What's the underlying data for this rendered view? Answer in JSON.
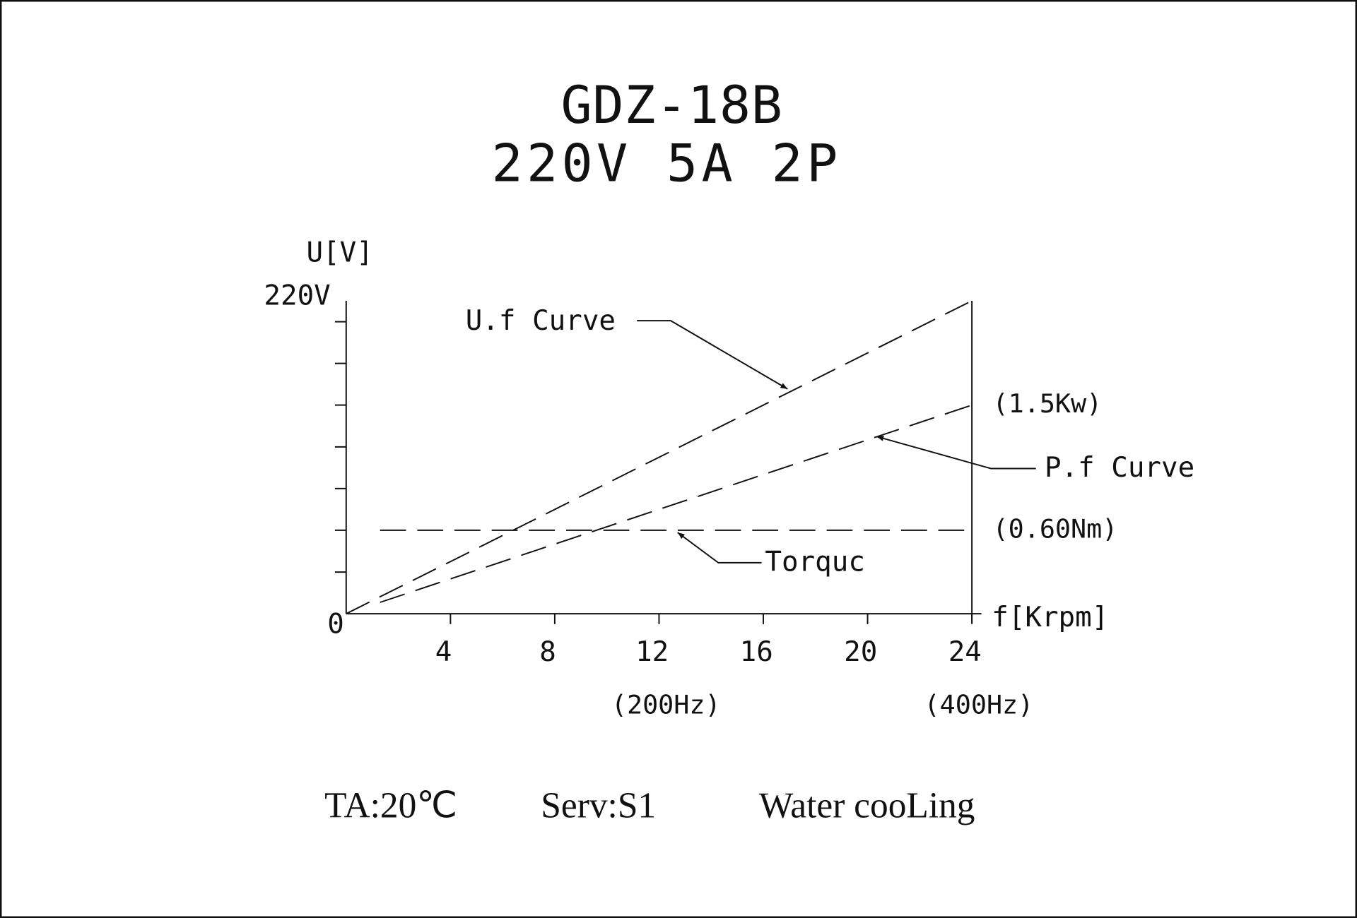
{
  "chart_data": {
    "type": "line",
    "title": "GDZ-18B",
    "subtitle": "220V 5A 2P",
    "y_axis_label": "U[V]",
    "x_axis_label": "f[Krpm]",
    "xlim": [
      0,
      24
    ],
    "ylim": [
      0,
      220
    ],
    "xticks": [
      0,
      4,
      8,
      12,
      16,
      20,
      24
    ],
    "yticks": [
      {
        "value": 220,
        "label": "220V"
      }
    ],
    "y_minor_ticks": [
      29.3,
      58.7,
      88,
      117.3,
      146.7,
      176,
      205.3
    ],
    "x_sublabels": [
      {
        "value": 12,
        "label": "(200Hz)"
      },
      {
        "value": 24,
        "label": "(400Hz)"
      }
    ],
    "color": "#111111",
    "series": [
      {
        "name": "U.f Curve",
        "x": [
          0,
          24
        ],
        "values": [
          0,
          220
        ]
      },
      {
        "name": "P.f Curve",
        "x": [
          1.3,
          24
        ],
        "values": [
          8,
          146.7
        ],
        "end_label": "(1.5Kw)"
      },
      {
        "name": "Torquc",
        "x": [
          1.3,
          24
        ],
        "values": [
          58.7,
          58.7
        ],
        "end_label": "(0.60Nm)"
      }
    ],
    "footer": [
      "TA:20℃",
      "Serv:S1",
      "Water cooLing"
    ]
  }
}
